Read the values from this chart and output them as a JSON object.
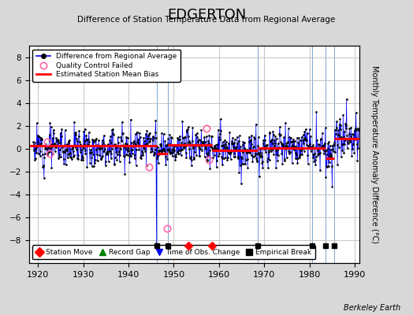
{
  "title": "EDGERTON",
  "subtitle": "Difference of Station Temperature Data from Regional Average",
  "ylabel_right": "Monthly Temperature Anomaly Difference (°C)",
  "credit": "Berkeley Earth",
  "xlim": [
    1918,
    1991
  ],
  "ylim": [
    -10,
    9
  ],
  "yticks": [
    -8,
    -6,
    -4,
    -2,
    0,
    2,
    4,
    6,
    8
  ],
  "xticks": [
    1920,
    1930,
    1940,
    1950,
    1960,
    1970,
    1980,
    1990
  ],
  "bg_color": "#d8d8d8",
  "plot_bg_color": "#ffffff",
  "grid_color": "#bbbbbb",
  "empirical_breaks": [
    1946.3,
    1948.7,
    1968.5,
    1980.5,
    1983.5,
    1985.5
  ],
  "station_moves": [
    1953.3,
    1958.5
  ],
  "obs_change_times": [],
  "bias_segments": [
    {
      "xstart": 1918.0,
      "xend": 1946.3,
      "bias": 0.25
    },
    {
      "xstart": 1946.3,
      "xend": 1948.7,
      "bias": -0.45
    },
    {
      "xstart": 1948.7,
      "xend": 1953.3,
      "bias": 0.3
    },
    {
      "xstart": 1953.3,
      "xend": 1958.5,
      "bias": 0.3
    },
    {
      "xstart": 1958.5,
      "xend": 1968.5,
      "bias": -0.15
    },
    {
      "xstart": 1968.5,
      "xend": 1980.5,
      "bias": 0.05
    },
    {
      "xstart": 1980.5,
      "xend": 1983.5,
      "bias": 0.05
    },
    {
      "xstart": 1983.5,
      "xend": 1985.5,
      "bias": -0.85
    },
    {
      "xstart": 1985.5,
      "xend": 1991.0,
      "bias": 0.85
    }
  ],
  "qc_failed": [
    {
      "t": 1922.0,
      "v": 0.6
    },
    {
      "t": 1922.5,
      "v": -0.4
    },
    {
      "t": 1944.5,
      "v": -1.6
    },
    {
      "t": 1948.5,
      "v": -7.0
    },
    {
      "t": 1957.2,
      "v": 1.8
    },
    {
      "t": 1957.8,
      "v": -1.0
    }
  ],
  "spike_indices": [
    {
      "idx": 28,
      "val": -2.8
    },
    {
      "idx": 44,
      "val": 2.0
    },
    {
      "idx": 155,
      "val": -1.8
    },
    {
      "idx": 258,
      "val": 2.3
    },
    {
      "idx": 326,
      "val": -8.5
    },
    {
      "idx": 340,
      "val": 1.8
    },
    {
      "idx": 395,
      "val": 2.1
    },
    {
      "idx": 490,
      "val": 1.8
    },
    {
      "idx": 545,
      "val": -1.9
    },
    {
      "idx": 590,
      "val": 2.3
    },
    {
      "idx": 668,
      "val": 2.2
    },
    {
      "idx": 750,
      "val": 3.2
    },
    {
      "idx": 792,
      "val": -2.5
    },
    {
      "idx": 830,
      "val": 3.5
    }
  ],
  "marker_y": -8.5,
  "seed": 12
}
